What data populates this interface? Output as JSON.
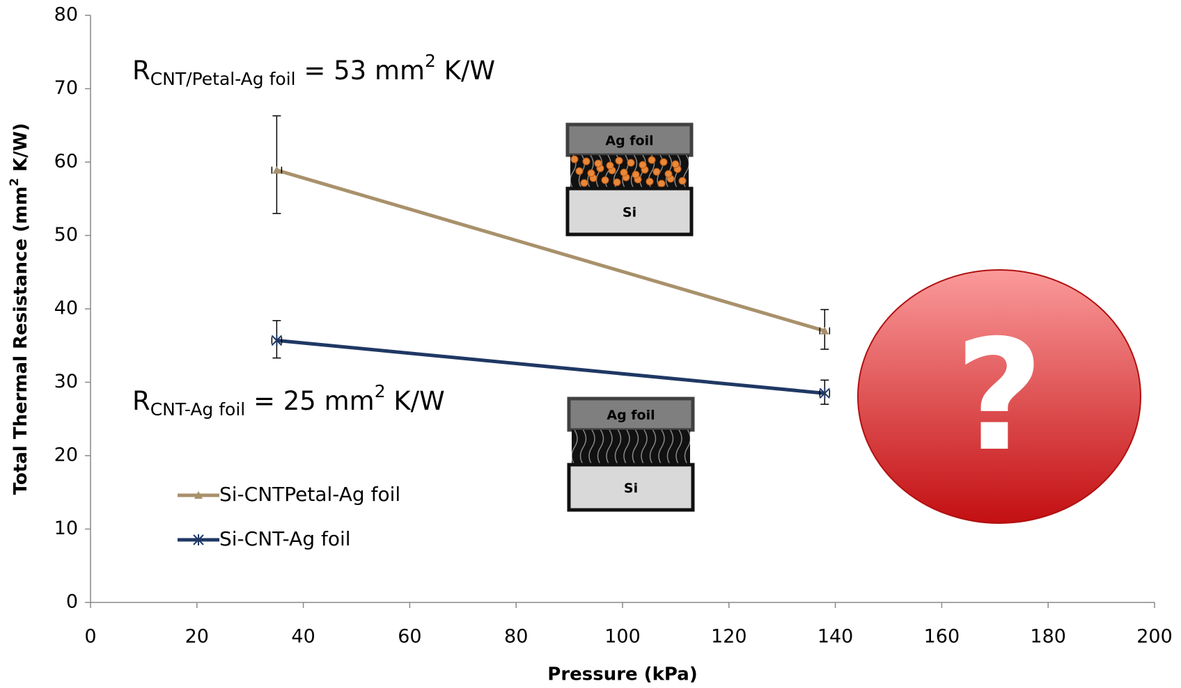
{
  "chart_data": {
    "type": "line",
    "xlabel": "Pressure (kPa)",
    "ylabel": {
      "text": "Total Thermal Resistance (mm",
      "sup": "2",
      "tail": " K/W)"
    },
    "xlim": [
      0,
      200
    ],
    "xticks": [
      0,
      20,
      40,
      60,
      80,
      100,
      120,
      140,
      160,
      180,
      200
    ],
    "ylim": [
      0,
      80
    ],
    "yticks": [
      0,
      10,
      20,
      30,
      40,
      50,
      60,
      70,
      80
    ],
    "grid": false,
    "legend": "lower left",
    "series": [
      {
        "name": "Si-CNTPetal-Ag foil",
        "color": "#a8916b",
        "marker": "triangle",
        "x": [
          35,
          138
        ],
        "values": [
          58.9,
          37
        ],
        "error_minus": [
          5.9,
          2.5
        ],
        "error_plus": [
          7.4,
          2.9
        ]
      },
      {
        "name": "Si-CNT-Ag foil",
        "color": "#1f3864",
        "marker": "star",
        "x": [
          35,
          138
        ],
        "values": [
          35.7,
          28.5
        ],
        "error_minus": [
          2.4,
          1.5
        ],
        "error_plus": [
          2.7,
          1.8
        ]
      }
    ],
    "annotations": [
      {
        "main": "R",
        "sub": "CNT/Petal-Ag foil",
        "text": " = 53 mm",
        "sup": "2",
        "tail": " K/W"
      },
      {
        "main": "R",
        "sub": "CNT-Ag foil",
        "text": " = 25 mm",
        "sup": "2",
        "tail": " K/W"
      }
    ],
    "insets": [
      {
        "top": "Ag foil",
        "bottom": "Si"
      },
      {
        "top": "Ag foil",
        "bottom": "Si"
      }
    ],
    "question_mark": "?"
  }
}
